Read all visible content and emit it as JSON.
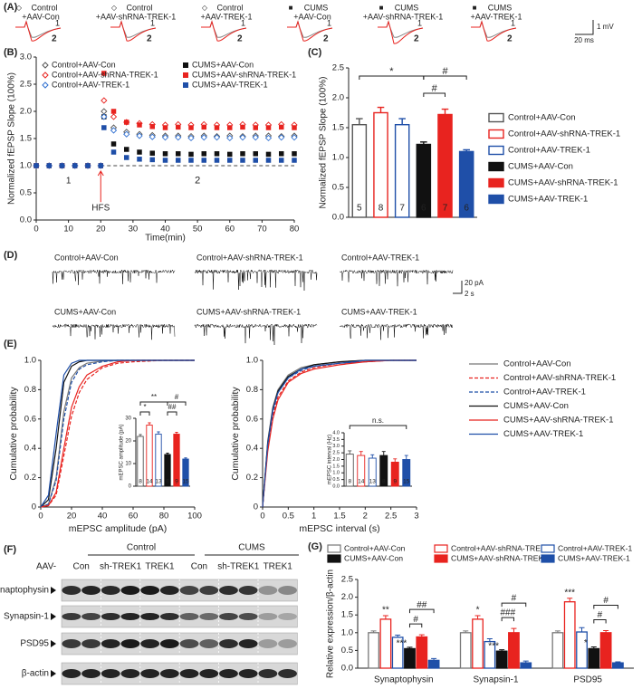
{
  "panel_a": {
    "label": "(A)",
    "groups": [
      [
        "Control",
        "+AAV-Con"
      ],
      [
        "Control",
        "+AAV-shRNA-TREK-1"
      ],
      [
        "Control",
        "+AAV-TREK-1"
      ],
      [
        "CUMS",
        "+AAV-Con"
      ],
      [
        "CUMS",
        "+AAV-shRNA-TREK-1"
      ],
      [
        "CUMS",
        "+AAV-TREK-1"
      ]
    ],
    "trace_labels": [
      "1",
      "2"
    ],
    "scale": [
      "1 mV",
      "20 ms"
    ]
  },
  "panel_d": {
    "label": "(D)",
    "traces": [
      "Control+AAV-Con",
      "Control+AAV-shRNA-TREK-1",
      "Control+AAV-TREK-1",
      "CUMS+AAV-Con",
      "CUMS+AAV-shRNA-TREK-1",
      "CUMS+AAV-TREK-1"
    ],
    "scale": [
      "20 pA",
      "2 s"
    ]
  },
  "panel_e": {
    "label": "(E)"
  },
  "panel_f": {
    "label": "(F)",
    "groups": [
      "Control",
      "CUMS"
    ],
    "aav": "AAV-",
    "lanes": [
      "Con",
      "sh-TREK1",
      "TREK1"
    ],
    "proteins": [
      "Synaptophysin",
      "Synapsin-1",
      "PSD95",
      "β-actin"
    ]
  },
  "chart_data": [
    {
      "type": "line",
      "panel_label": "(B)",
      "xlabel": "Time(min)",
      "ylabel": "Normalized fEPSP Slope (100%)",
      "x": [
        0,
        4,
        8,
        12,
        16,
        20,
        21,
        24,
        28,
        32,
        36,
        40,
        44,
        48,
        52,
        56,
        60,
        64,
        68,
        72,
        76,
        80
      ],
      "series": [
        {
          "name": "Control+AAV-Con",
          "color": "#555555",
          "marker": "diamond",
          "filled": false,
          "values": [
            1,
            1,
            1,
            1,
            1,
            1,
            2.0,
            1.7,
            1.62,
            1.58,
            1.56,
            1.55,
            1.55,
            1.54,
            1.55,
            1.54,
            1.55,
            1.54,
            1.55,
            1.55,
            1.54,
            1.55
          ]
        },
        {
          "name": "CUMS+AAV-Con",
          "color": "#111111",
          "marker": "square",
          "filled": true,
          "values": [
            1,
            1,
            1,
            1,
            1,
            1,
            1.9,
            1.4,
            1.3,
            1.25,
            1.23,
            1.22,
            1.22,
            1.21,
            1.22,
            1.22,
            1.21,
            1.22,
            1.22,
            1.21,
            1.22,
            1.22
          ]
        },
        {
          "name": "Control+AAV-shRNA-TREK-1",
          "color": "#e8231f",
          "marker": "diamond",
          "filled": false,
          "values": [
            1,
            1,
            1,
            1,
            1,
            1,
            2.2,
            1.9,
            1.8,
            1.78,
            1.76,
            1.75,
            1.76,
            1.75,
            1.76,
            1.75,
            1.75,
            1.76,
            1.75,
            1.75,
            1.76,
            1.75
          ]
        },
        {
          "name": "CUMS+AAV-shRNA-TREK-1",
          "color": "#e8231f",
          "marker": "square",
          "filled": true,
          "values": [
            1,
            1,
            1,
            1,
            1,
            1,
            2.7,
            2.0,
            1.8,
            1.75,
            1.72,
            1.7,
            1.71,
            1.7,
            1.71,
            1.7,
            1.7,
            1.71,
            1.7,
            1.7,
            1.71,
            1.7
          ]
        },
        {
          "name": "Control+AAV-TREK-1",
          "color": "#2f6fd0",
          "marker": "diamond",
          "filled": false,
          "values": [
            1,
            1,
            1,
            1,
            1,
            1,
            1.9,
            1.65,
            1.58,
            1.55,
            1.53,
            1.52,
            1.52,
            1.51,
            1.52,
            1.52,
            1.51,
            1.52,
            1.52,
            1.51,
            1.52,
            1.52
          ]
        },
        {
          "name": "CUMS+AAV-TREK-1",
          "color": "#1f4fa8",
          "marker": "square",
          "filled": true,
          "values": [
            1,
            1,
            1,
            1,
            1,
            1,
            1.7,
            1.25,
            1.15,
            1.12,
            1.11,
            1.1,
            1.1,
            1.1,
            1.1,
            1.1,
            1.1,
            1.1,
            1.1,
            1.1,
            1.1,
            1.1
          ]
        }
      ],
      "xlim": [
        0,
        80
      ],
      "xticks": [
        0,
        10,
        20,
        30,
        40,
        50,
        60,
        70,
        80
      ],
      "ylim": [
        0,
        3
      ],
      "yticks": [
        {
          "value": 0,
          "label": "0.0"
        },
        0.5,
        {
          "value": 1,
          "label": "1.0"
        },
        1.5,
        {
          "value": 2,
          "label": "2.0"
        },
        2.5,
        {
          "value": 3,
          "label": "3.0"
        }
      ],
      "reference_line": 1,
      "annotations": [
        "1",
        "2",
        "HFS"
      ]
    },
    {
      "type": "bar",
      "panel_label": "(C)",
      "ylabel": "Normalized fEPSP Slope (100%)",
      "categories": [
        "Control+AAV-Con",
        "Control+AAV-shRNA-TREK-1",
        "Control+AAV-TREK-1",
        "CUMS+AAV-Con",
        "CUMS+AAV-shRNA-TREK-1",
        "CUMS+AAV-TREK-1"
      ],
      "values": [
        1.55,
        1.75,
        1.55,
        1.22,
        1.72,
        1.1
      ],
      "errors": [
        0.1,
        0.09,
        0.1,
        0.04,
        0.09,
        0.03
      ],
      "n": [
        5,
        8,
        7,
        6,
        7,
        6
      ],
      "colors": [
        "#555555",
        "#e8231f",
        "#1f4fa8",
        "#111111",
        "#e8231f",
        "#1f4fa8"
      ],
      "filled": [
        false,
        false,
        false,
        true,
        true,
        true
      ],
      "ylim": [
        0,
        2.5
      ],
      "yticks": [
        {
          "value": 0,
          "label": "0.0"
        },
        0.5,
        {
          "value": 1,
          "label": "1.0"
        },
        1.5,
        {
          "value": 2,
          "label": "2.0"
        },
        2.5
      ],
      "significance": [
        "*",
        "#",
        "#"
      ]
    },
    {
      "type": "line",
      "xlabel": "mEPSC amplitude (pA)",
      "ylabel": "Cumulative probability",
      "x": [
        0,
        5,
        10,
        15,
        20,
        25,
        30,
        40,
        50,
        60,
        80,
        100
      ],
      "series": [
        {
          "name": "Control+AAV-Con",
          "color": "#777777",
          "dashed": false,
          "values": [
            0,
            0.02,
            0.2,
            0.65,
            0.88,
            0.95,
            0.98,
            0.995,
            1,
            1,
            1,
            1
          ]
        },
        {
          "name": "Control+AAV-shRNA-TREK-1",
          "color": "#e8231f",
          "dashed": true,
          "values": [
            0,
            0.01,
            0.08,
            0.35,
            0.62,
            0.78,
            0.87,
            0.95,
            0.98,
            0.99,
            1,
            1
          ]
        },
        {
          "name": "Control+AAV-TREK-1",
          "color": "#1f4fa8",
          "dashed": true,
          "values": [
            0,
            0.02,
            0.18,
            0.6,
            0.85,
            0.94,
            0.97,
            0.99,
            1,
            1,
            1,
            1
          ]
        },
        {
          "name": "CUMS+AAV-Con",
          "color": "#111111",
          "dashed": false,
          "values": [
            0,
            0.05,
            0.4,
            0.85,
            0.96,
            0.99,
            1,
            1,
            1,
            1,
            1,
            1
          ]
        },
        {
          "name": "CUMS+AAV-shRNA-TREK-1",
          "color": "#e8231f",
          "dashed": false,
          "values": [
            0,
            0.01,
            0.1,
            0.4,
            0.68,
            0.82,
            0.9,
            0.96,
            0.99,
            1,
            1,
            1
          ]
        },
        {
          "name": "CUMS+AAV-TREK-1",
          "color": "#1f4fa8",
          "dashed": false,
          "values": [
            0,
            0.08,
            0.5,
            0.9,
            0.98,
            1,
            1,
            1,
            1,
            1,
            1,
            1
          ]
        }
      ],
      "xlim": [
        0,
        100
      ],
      "xticks": [
        0,
        20,
        40,
        60,
        80,
        100
      ],
      "ylim": [
        0,
        1
      ],
      "yticks": [
        0,
        0.2,
        0.4,
        0.6,
        0.8,
        {
          "value": 1,
          "label": "1.0"
        }
      ]
    },
    {
      "type": "bar",
      "ylabel": "mEPSC amplitude (pA)",
      "values": [
        22,
        27,
        23,
        14,
        23,
        12
      ],
      "errors": [
        0.8,
        1,
        1,
        0.6,
        0.8,
        0.5
      ],
      "n": [
        8,
        14,
        13,
        8,
        9,
        15
      ],
      "colors": [
        "#555555",
        "#e8231f",
        "#1f4fa8",
        "#111111",
        "#e8231f",
        "#1f4fa8"
      ],
      "filled": [
        false,
        false,
        false,
        true,
        true,
        true
      ],
      "ylim": [
        0,
        30
      ],
      "yticks": [
        0,
        10,
        20,
        30
      ],
      "significance": [
        "*",
        "**",
        "#",
        "##"
      ]
    },
    {
      "type": "line",
      "xlabel": "mEPSC interval (s)",
      "ylabel": "Cumulative probability",
      "x": [
        0,
        0.1,
        0.2,
        0.3,
        0.5,
        0.75,
        1,
        1.5,
        2,
        2.5,
        3
      ],
      "series": [
        {
          "color": "#777777",
          "dashed": false,
          "values": [
            0,
            0.45,
            0.68,
            0.8,
            0.9,
            0.95,
            0.97,
            0.99,
            1,
            1,
            1
          ]
        },
        {
          "color": "#e8231f",
          "dashed": true,
          "values": [
            0,
            0.4,
            0.62,
            0.75,
            0.86,
            0.92,
            0.95,
            0.98,
            0.99,
            1,
            1
          ]
        },
        {
          "color": "#1f4fa8",
          "dashed": true,
          "values": [
            0,
            0.42,
            0.65,
            0.78,
            0.88,
            0.93,
            0.96,
            0.98,
            0.99,
            1,
            1
          ]
        },
        {
          "color": "#111111",
          "dashed": false,
          "values": [
            0,
            0.44,
            0.67,
            0.79,
            0.89,
            0.94,
            0.97,
            0.99,
            1,
            1,
            1
          ]
        },
        {
          "color": "#e8231f",
          "dashed": false,
          "values": [
            0,
            0.38,
            0.6,
            0.73,
            0.85,
            0.91,
            0.94,
            0.97,
            0.99,
            1,
            1
          ]
        },
        {
          "color": "#1f4fa8",
          "dashed": false,
          "values": [
            0,
            0.43,
            0.66,
            0.78,
            0.88,
            0.94,
            0.96,
            0.98,
            1,
            1,
            1
          ]
        }
      ],
      "xlim": [
        0,
        3
      ],
      "xticks": [
        0,
        0.5,
        1,
        1.5,
        2,
        2.5,
        3
      ],
      "ylim": [
        0,
        1
      ],
      "yticks": [
        0,
        0.2,
        0.4,
        0.6,
        0.8,
        {
          "value": 1,
          "label": "1.0"
        }
      ]
    },
    {
      "type": "bar",
      "ylabel": "mEPSC interval (Hz)",
      "values": [
        2.4,
        2.3,
        2.1,
        2.3,
        1.8,
        2.0
      ],
      "errors": [
        0.25,
        0.3,
        0.25,
        0.3,
        0.25,
        0.3
      ],
      "n": [
        8,
        14,
        13,
        8,
        9,
        15
      ],
      "colors": [
        "#555555",
        "#e8231f",
        "#1f4fa8",
        "#111111",
        "#e8231f",
        "#1f4fa8"
      ],
      "filled": [
        false,
        false,
        false,
        true,
        true,
        true
      ],
      "ylim": [
        0,
        4
      ],
      "yticks": [
        {
          "value": 0,
          "label": "0.0"
        },
        0.5,
        {
          "value": 1,
          "label": "1.0"
        },
        1.5,
        {
          "value": 2,
          "label": "2.0"
        },
        2.5,
        {
          "value": 3,
          "label": "3.0"
        },
        3.5,
        {
          "value": 4,
          "label": "4.0"
        }
      ],
      "significance": [
        "n.s."
      ]
    },
    {
      "type": "grouped_bar",
      "panel_label": "(G)",
      "ylabel": "Relative expression/β-actin",
      "categories": [
        "Synaptophysin",
        "Synapsin-1",
        "PSD95"
      ],
      "series": [
        {
          "name": "Control+AAV-Con",
          "color": "#777777",
          "filled": false,
          "values": [
            1.0,
            1.0,
            1.0
          ],
          "errors": [
            0.05,
            0.05,
            0.05
          ]
        },
        {
          "name": "Control+AAV-shRNA-TREK-1",
          "color": "#e8231f",
          "filled": false,
          "values": [
            1.38,
            1.38,
            1.87
          ],
          "errors": [
            0.1,
            0.1,
            0.1
          ]
        },
        {
          "name": "Control+AAV-TREK-1",
          "color": "#1f4fa8",
          "filled": false,
          "values": [
            0.87,
            0.75,
            1.02
          ],
          "errors": [
            0.06,
            0.08,
            0.12
          ]
        },
        {
          "name": "CUMS+AAV-Con",
          "color": "#111111",
          "filled": true,
          "values": [
            0.55,
            0.48,
            0.55
          ],
          "errors": [
            0.04,
            0.04,
            0.05
          ]
        },
        {
          "name": "CUMS+AAV-shRNA-TREK-1",
          "color": "#e8231f",
          "filled": true,
          "values": [
            0.88,
            1.0,
            1.0
          ],
          "errors": [
            0.06,
            0.12,
            0.06
          ]
        },
        {
          "name": "CUMS+AAV-TREK-1",
          "color": "#1f4fa8",
          "filled": true,
          "values": [
            0.22,
            0.15,
            0.15
          ],
          "errors": [
            0.05,
            0.05,
            0.03
          ]
        }
      ],
      "ylim": [
        0,
        2.5
      ],
      "yticks": [
        {
          "value": 0,
          "label": "0.0"
        },
        0.5,
        {
          "value": 1,
          "label": "1.0"
        },
        1.5,
        {
          "value": 2,
          "label": "2.0"
        },
        2.5
      ],
      "significance": [
        [
          "**",
          "***",
          "#",
          "##"
        ],
        [
          "*",
          "***",
          "###",
          "#"
        ],
        [
          "***",
          "*",
          "#",
          "#"
        ]
      ]
    }
  ]
}
